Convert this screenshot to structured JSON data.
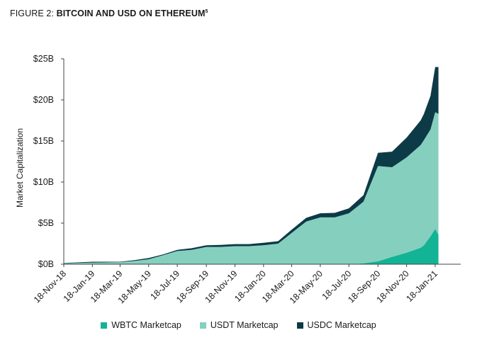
{
  "title": {
    "prefix": "FIGURE 2: ",
    "main": "BITCOIN AND USD ON ETHEREUM",
    "footnote": "5"
  },
  "colors": {
    "wbtc": "#13b396",
    "usdt": "#85cfbe",
    "usdc": "#0d3a47",
    "axis": "#444444",
    "text": "#1a1a1a"
  },
  "chart_data": {
    "type": "area",
    "stacked": true,
    "ylabel": "Market Capitalization",
    "xlabel": "",
    "ylim": [
      0,
      25
    ],
    "y_ticks": [
      {
        "value": 0,
        "label": "$0B"
      },
      {
        "value": 5,
        "label": "$5B"
      },
      {
        "value": 10,
        "label": "$10B"
      },
      {
        "value": 15,
        "label": "$15B"
      },
      {
        "value": 20,
        "label": "$20B"
      },
      {
        "value": 25,
        "label": "$25B"
      }
    ],
    "x_ticks": [
      "18-Nov-18",
      "18-Jan-19",
      "18-Mar-19",
      "18-May-19",
      "18-Jul-19",
      "18-Sep-19",
      "18-Nov-19",
      "18-Jan-20",
      "18-Mar-20",
      "18-May-20",
      "18-Jul-20",
      "18-Sep-20",
      "18-Nov-20",
      "18-Jan-21"
    ],
    "x": [
      "18-Nov-18",
      "18-Jan-19",
      "18-Mar-19",
      "18-Apr-19",
      "18-May-19",
      "18-Jun-19",
      "18-Jul-19",
      "18-Aug-19",
      "18-Sep-19",
      "18-Oct-19",
      "18-Nov-19",
      "18-Dec-19",
      "18-Jan-20",
      "18-Feb-20",
      "18-Mar-20",
      "18-Apr-20",
      "18-May-20",
      "18-Jun-20",
      "18-Jul-20",
      "18-Aug-20",
      "18-Sep-20",
      "18-Oct-20",
      "18-Nov-20",
      "18-Dec-20",
      "25-Dec-20",
      "08-Jan-21",
      "18-Jan-21",
      "25-Jan-21"
    ],
    "series": [
      {
        "name": "WBTC Marketcap",
        "values": [
          0,
          0,
          0,
          0,
          0,
          0,
          0,
          0,
          0,
          0,
          0,
          0,
          0,
          0,
          0,
          0,
          0,
          0,
          0,
          0.1,
          0.35,
          0.9,
          1.4,
          2.0,
          2.3,
          3.4,
          4.3,
          3.6
        ]
      },
      {
        "name": "USDT Marketcap",
        "values": [
          0.1,
          0.2,
          0.25,
          0.4,
          0.6,
          1.1,
          1.6,
          1.75,
          2.1,
          2.1,
          2.2,
          2.2,
          2.3,
          2.5,
          3.8,
          5.2,
          5.7,
          5.7,
          6.2,
          7.5,
          11.6,
          10.9,
          11.6,
          12.5,
          12.8,
          13.0,
          14.2,
          14.7
        ]
      },
      {
        "name": "USDC Marketcap",
        "values": [
          0.05,
          0.1,
          0.05,
          0.1,
          0.15,
          0.1,
          0.15,
          0.2,
          0.2,
          0.25,
          0.25,
          0.25,
          0.3,
          0.3,
          0.4,
          0.45,
          0.5,
          0.55,
          0.6,
          0.8,
          1.6,
          1.9,
          2.4,
          3.0,
          3.2,
          4.1,
          5.5,
          5.7
        ]
      }
    ]
  },
  "legend": [
    {
      "label": "WBTC Marketcap",
      "color_key": "wbtc"
    },
    {
      "label": "USDT Marketcap",
      "color_key": "usdt"
    },
    {
      "label": "USDC Marketcap",
      "color_key": "usdc"
    }
  ]
}
